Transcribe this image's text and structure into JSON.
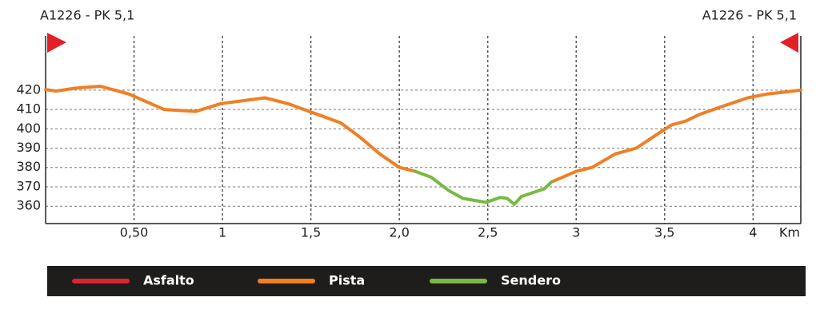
{
  "chart_data": {
    "type": "line",
    "title_left": "A1226 - PK 5,1",
    "title_right": "A1226 - PK 5,1",
    "x_label": "Km",
    "xlim": [
      0,
      4.27
    ],
    "ylim": [
      351,
      448
    ],
    "xticks": [
      {
        "value": 0.5,
        "label": "0,50"
      },
      1,
      {
        "value": 1.5,
        "label": "1,5"
      },
      {
        "value": 2,
        "label": "2,0"
      },
      {
        "value": 2.5,
        "label": "2,5"
      },
      3,
      {
        "value": 3.5,
        "label": "3,5"
      },
      4
    ],
    "yticks": [
      360,
      370,
      380,
      390,
      400,
      410,
      420
    ],
    "grid": true,
    "series": [
      {
        "name": "Asfalto",
        "color": "#d9262c"
      },
      {
        "name": "Pista",
        "color": "#f07f24",
        "x": [
          0,
          0.06,
          0.17,
          0.31,
          0.47,
          0.67,
          0.85,
          0.99,
          1.24,
          1.37,
          1.55,
          1.67,
          1.78,
          1.89,
          2.0,
          2.09,
          null,
          2.86,
          3.0,
          3.09,
          3.22,
          3.34,
          3.48,
          3.54,
          3.62,
          3.7,
          3.84,
          3.97,
          4.08,
          4.18,
          4.27
        ],
        "values": [
          420.3,
          419.5,
          421,
          422,
          418,
          410,
          409,
          413,
          416,
          413,
          407,
          403,
          395.5,
          387,
          380,
          378,
          null,
          372.5,
          378,
          380,
          387,
          390,
          398.5,
          402,
          404,
          407.5,
          412,
          416,
          418,
          419,
          420
        ]
      },
      {
        "name": "Sendero",
        "color": "#79b943",
        "x": [
          2.09,
          2.18,
          2.28,
          2.36,
          2.49,
          2.57,
          2.61,
          2.65,
          2.69,
          2.82,
          2.86
        ],
        "values": [
          378,
          375,
          368,
          364,
          362,
          364.5,
          364,
          361,
          365,
          369,
          372.5
        ]
      }
    ]
  }
}
